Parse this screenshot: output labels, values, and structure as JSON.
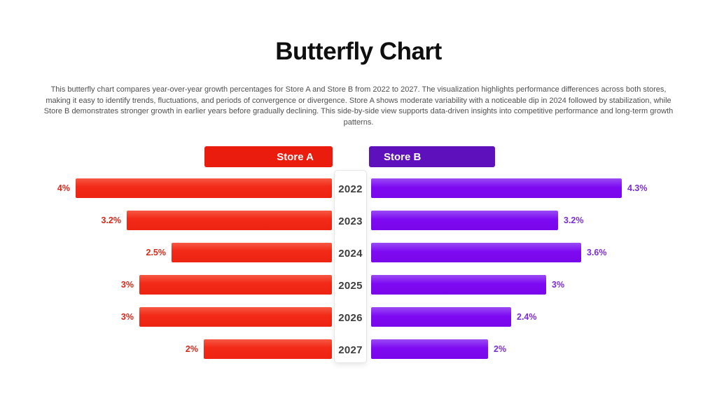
{
  "title": "Butterfly Chart",
  "description": "This butterfly chart compares year-over-year growth percentages for Store A and Store B from 2022 to 2027. The visualization highlights performance differences across both stores, making it easy to identify trends, fluctuations, and periods of convergence or divergence. Store A shows moderate variability with a noticeable dip in 2024 followed by stabilization, while Store B demonstrates stronger growth in earlier years before gradually declining. This side-by-side view supports data-driven insights into competitive performance and long-term growth patterns.",
  "colors": {
    "store_a_bar": "#f22a17",
    "store_a_header": "#ea1c0d",
    "store_a_label": "#dd2719",
    "store_b_bar": "#7d0af2",
    "store_b_header": "#5f10bd",
    "store_b_label": "#7b2ed3",
    "year_text": "#3e3e3e",
    "background": "#ffffff"
  },
  "chart_data": {
    "type": "bar",
    "subtype": "butterfly",
    "title": "Butterfly Chart",
    "categories": [
      "2022",
      "2023",
      "2024",
      "2025",
      "2026",
      "2027"
    ],
    "series": [
      {
        "name": "Store A",
        "side": "left",
        "values": [
          4,
          3.2,
          2.5,
          3,
          3,
          2
        ],
        "labels": [
          "4%",
          "3.2%",
          "2.5%",
          "3%",
          "3%",
          "2%"
        ],
        "color": "#f22a17"
      },
      {
        "name": "Store B",
        "side": "right",
        "values": [
          4.3,
          3.2,
          3.6,
          3,
          2.4,
          2
        ],
        "labels": [
          "4.3%",
          "3.2%",
          "3.6%",
          "3%",
          "2.4%",
          "2%"
        ],
        "color": "#7d0af2"
      }
    ],
    "value_range": [
      0,
      4.3
    ],
    "unit": "%",
    "legend_position": "top",
    "grid": false
  }
}
